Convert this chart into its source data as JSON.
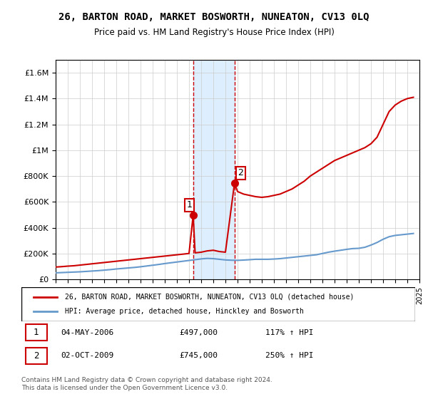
{
  "title": "26, BARTON ROAD, MARKET BOSWORTH, NUNEATON, CV13 0LQ",
  "subtitle": "Price paid vs. HM Land Registry's House Price Index (HPI)",
  "legend_line1": "26, BARTON ROAD, MARKET BOSWORTH, NUNEATON, CV13 0LQ (detached house)",
  "legend_line2": "HPI: Average price, detached house, Hinckley and Bosworth",
  "footer": "Contains HM Land Registry data © Crown copyright and database right 2024.\nThis data is licensed under the Open Government Licence v3.0.",
  "sale1_label": "1",
  "sale1_date": "04-MAY-2006",
  "sale1_price": "£497,000",
  "sale1_hpi": "117% ↑ HPI",
  "sale2_label": "2",
  "sale2_date": "02-OCT-2009",
  "sale2_price": "£745,000",
  "sale2_hpi": "250% ↑ HPI",
  "red_color": "#cc0000",
  "blue_color": "#6699cc",
  "highlight_color": "#ddeeff",
  "marker_color": "#cc0000",
  "sale1_x": 2006.34,
  "sale2_x": 2009.75,
  "ylim_max": 1700000,
  "yticks": [
    0,
    200000,
    400000,
    600000,
    800000,
    1000000,
    1200000,
    1400000,
    1600000
  ],
  "ytick_labels": [
    "£0",
    "£200K",
    "£400K",
    "£600K",
    "£800K",
    "£1M",
    "£1.2M",
    "£1.4M",
    "£1.6M"
  ],
  "xmin": 1995,
  "xmax": 2025,
  "red_x": [
    1995,
    1995.5,
    1996,
    1996.5,
    1997,
    1997.5,
    1998,
    1998.5,
    1999,
    1999.5,
    2000,
    2000.5,
    2001,
    2001.5,
    2002,
    2002.5,
    2003,
    2003.5,
    2004,
    2004.5,
    2005,
    2005.5,
    2006,
    2006.34,
    2006.5,
    2007,
    2007.5,
    2008,
    2008.5,
    2009,
    2009.75,
    2010,
    2010.5,
    2011,
    2011.5,
    2012,
    2012.5,
    2013,
    2013.5,
    2014,
    2014.5,
    2015,
    2015.5,
    2016,
    2016.5,
    2017,
    2017.5,
    2018,
    2018.5,
    2019,
    2019.5,
    2020,
    2020.5,
    2021,
    2021.5,
    2022,
    2022.5,
    2023,
    2023.5,
    2024,
    2024.5
  ],
  "red_y": [
    95000,
    98000,
    102000,
    105000,
    110000,
    115000,
    120000,
    125000,
    130000,
    135000,
    140000,
    145000,
    150000,
    155000,
    160000,
    165000,
    170000,
    175000,
    180000,
    185000,
    190000,
    195000,
    200000,
    497000,
    205000,
    210000,
    220000,
    225000,
    215000,
    210000,
    745000,
    680000,
    660000,
    650000,
    640000,
    635000,
    640000,
    650000,
    660000,
    680000,
    700000,
    730000,
    760000,
    800000,
    830000,
    860000,
    890000,
    920000,
    940000,
    960000,
    980000,
    1000000,
    1020000,
    1050000,
    1100000,
    1200000,
    1300000,
    1350000,
    1380000,
    1400000,
    1410000
  ],
  "blue_x": [
    1995,
    1995.5,
    1996,
    1996.5,
    1997,
    1997.5,
    1998,
    1998.5,
    1999,
    1999.5,
    2000,
    2000.5,
    2001,
    2001.5,
    2002,
    2002.5,
    2003,
    2003.5,
    2004,
    2004.5,
    2005,
    2005.5,
    2006,
    2006.5,
    2007,
    2007.5,
    2008,
    2008.5,
    2009,
    2009.5,
    2010,
    2010.5,
    2011,
    2011.5,
    2012,
    2012.5,
    2013,
    2013.5,
    2014,
    2014.5,
    2015,
    2015.5,
    2016,
    2016.5,
    2017,
    2017.5,
    2018,
    2018.5,
    2019,
    2019.5,
    2020,
    2020.5,
    2021,
    2021.5,
    2022,
    2022.5,
    2023,
    2023.5,
    2024,
    2024.5
  ],
  "blue_y": [
    50000,
    52000,
    54000,
    56000,
    58000,
    61000,
    64000,
    67000,
    71000,
    75000,
    80000,
    84000,
    88000,
    92000,
    97000,
    103000,
    109000,
    115000,
    122000,
    128000,
    134000,
    140000,
    146000,
    152000,
    158000,
    162000,
    160000,
    155000,
    150000,
    148000,
    147000,
    149000,
    152000,
    155000,
    155000,
    155000,
    157000,
    160000,
    165000,
    170000,
    175000,
    180000,
    185000,
    190000,
    200000,
    210000,
    218000,
    225000,
    232000,
    238000,
    240000,
    248000,
    265000,
    285000,
    310000,
    330000,
    340000,
    345000,
    350000,
    355000
  ]
}
